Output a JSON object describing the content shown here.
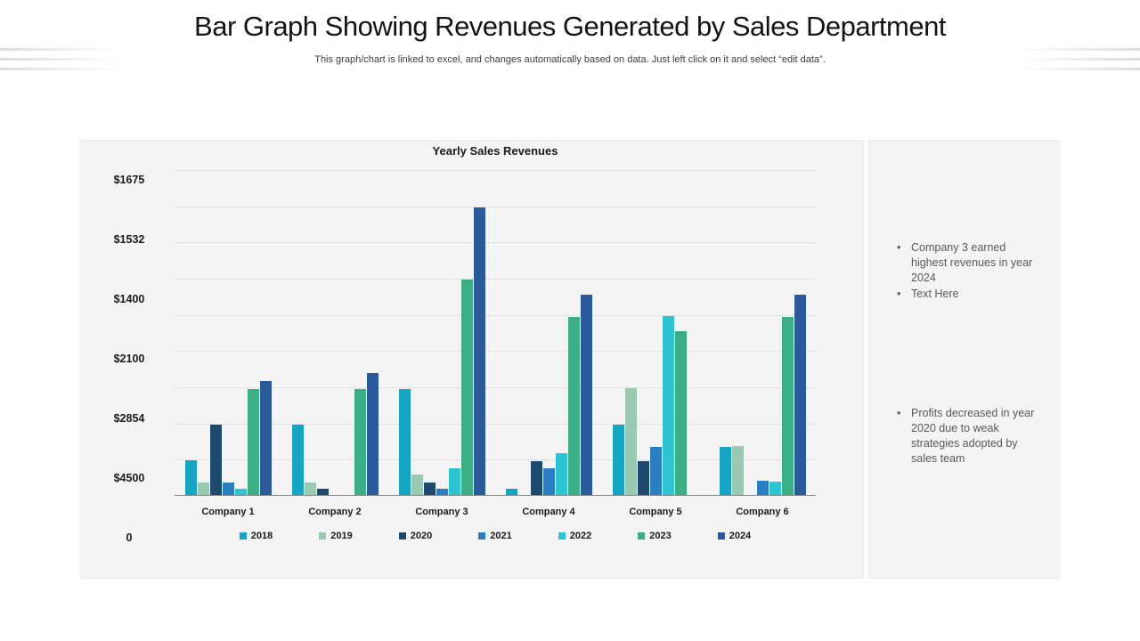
{
  "slide": {
    "title": "Bar Graph Showing Revenues Generated by Sales Department",
    "subtitle": "This graph/chart is linked to excel, and changes automatically based on data. Just left click on it and select “edit data”."
  },
  "chart_data": {
    "type": "bar",
    "title": "Yearly Sales Revenues",
    "categories": [
      "Company 1",
      "Company 2",
      "Company 3",
      "Company 4",
      "Company 5",
      "Company 6"
    ],
    "series": [
      {
        "name": "2018",
        "color": "#16a6c4",
        "values": [
          10.7,
          21.5,
          32.4,
          1.8,
          21.7,
          14.8
        ]
      },
      {
        "name": "2019",
        "color": "#9bcab3",
        "values": [
          3.9,
          3.9,
          6.2,
          0,
          32.8,
          15.1
        ]
      },
      {
        "name": "2020",
        "color": "#1e4a70",
        "values": [
          21.6,
          1.8,
          3.9,
          10.3,
          10.5,
          0
        ]
      },
      {
        "name": "2021",
        "color": "#2b7ec2",
        "values": [
          3.8,
          0,
          1.8,
          8.2,
          14.7,
          4.4
        ]
      },
      {
        "name": "2022",
        "color": "#2fc4d2",
        "values": [
          1.9,
          0,
          8.2,
          12.8,
          54.9,
          4.1
        ]
      },
      {
        "name": "2023",
        "color": "#3cae84",
        "values": [
          32.6,
          32.6,
          66.0,
          54.6,
          50.2,
          54.6
        ]
      },
      {
        "name": "2024",
        "color": "#2b5a9a",
        "values": [
          35.0,
          37.3,
          88.2,
          61.5,
          0,
          61.6
        ]
      }
    ],
    "y_axis_labels": [
      "$1675",
      "$1532",
      "$1400",
      "$2100",
      "$2854",
      "$4500",
      "0"
    ],
    "ylim": [
      0,
      100
    ],
    "grid": true,
    "legend_position": "bottom"
  },
  "sidebar": {
    "bullets_top": [
      "Company 3 earned highest revenues in year 2024",
      "Text Here"
    ],
    "bullets_bottom": [
      "Profits decreased in year 2020 due to weak strategies adopted by sales team"
    ]
  }
}
